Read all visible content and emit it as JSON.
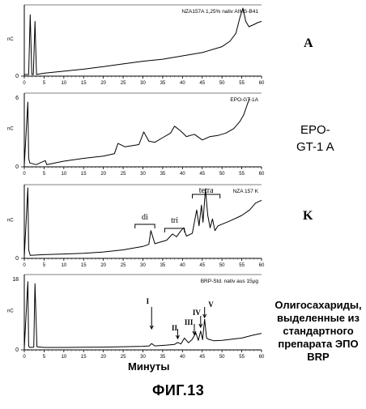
{
  "panels": [
    {
      "header": "NZA157A 1,25% nativ AIMS-B41",
      "ytop": "",
      "ybottom": "0",
      "yunit": "nC",
      "label": "A",
      "annotations": []
    },
    {
      "header": "EPO-GT-1A",
      "ytop": "6",
      "ybottom": "0",
      "yunit": "nC",
      "label": "EPO-\nGT-1 A",
      "annotations": []
    },
    {
      "header": "NZA 157 K",
      "ytop": "",
      "ybottom": "0",
      "yunit": "nC",
      "label": "K",
      "annotations": [
        "di",
        "tri",
        "tetra"
      ]
    },
    {
      "header": "BRP-Std. nativ aus 15µg",
      "ytop": "18",
      "ybottom": "0",
      "yunit": "nC",
      "label": "Олигосахариды, выделенные из стандартного препарата ЭПО BRP",
      "annotations": [
        "I",
        "II",
        "III",
        "IV",
        "V"
      ]
    }
  ],
  "x_ticks": [
    "0",
    "5",
    "10",
    "15",
    "20",
    "25",
    "30",
    "35",
    "40",
    "45",
    "50",
    "55",
    "60"
  ],
  "xlabel": "Минуты",
  "figure_title": "ФИГ.13",
  "chart_data": [
    {
      "type": "line",
      "title": "NZA157A 1,25% nativ AIMS-B41",
      "xlim": [
        0,
        60
      ],
      "x": [
        0,
        1.1,
        1.5,
        1.9,
        2.3,
        2.7,
        3.1,
        5,
        10,
        15,
        20,
        25,
        30,
        35,
        40,
        45,
        50,
        52,
        53.5,
        54.5,
        55.3,
        56,
        56.8,
        58,
        59,
        60
      ],
      "y": [
        0,
        0,
        0.9,
        0,
        0,
        0.8,
        0,
        0.02,
        0.05,
        0.08,
        0.12,
        0.16,
        0.2,
        0.23,
        0.28,
        0.33,
        0.42,
        0.5,
        0.62,
        0.85,
        1.0,
        0.8,
        0.72,
        0.75,
        0.78,
        0.8
      ]
    },
    {
      "type": "line",
      "title": "EPO-GT-1A",
      "xlim": [
        0,
        60
      ],
      "ylim": [
        0,
        6
      ],
      "x": [
        0,
        0.9,
        1.1,
        1.4,
        3,
        5.3,
        5.7,
        10,
        15,
        20,
        22.8,
        23.7,
        25.5,
        29,
        30.2,
        31.5,
        33,
        35,
        37,
        38,
        39.5,
        41,
        43,
        45,
        47,
        49,
        51,
        53,
        54.5,
        55.5,
        56.5,
        57
      ],
      "y": [
        0,
        5.5,
        0.6,
        0.2,
        0.05,
        0.4,
        0.05,
        0.35,
        0.6,
        0.8,
        1.0,
        1.9,
        1.6,
        1.8,
        2.9,
        2.1,
        2.0,
        2.4,
        2.8,
        3.4,
        3.0,
        2.5,
        2.7,
        2.2,
        2.5,
        2.6,
        2.8,
        3.2,
        3.8,
        4.4,
        5.4,
        5.8
      ]
    },
    {
      "type": "line",
      "title": "NZA 157 K",
      "xlim": [
        0,
        60
      ],
      "x": [
        0,
        0.9,
        1.1,
        1.5,
        5,
        10,
        15,
        20,
        25,
        30,
        31.5,
        32,
        33,
        36,
        37.5,
        38.5,
        39.5,
        40.3,
        41,
        42.5,
        43.6,
        44.2,
        44.8,
        45.2,
        45.8,
        46.4,
        47,
        47.6,
        48.2,
        49,
        52,
        55,
        57,
        58.5,
        60
      ],
      "y": [
        0,
        1.0,
        0.1,
        0.02,
        0.03,
        0.04,
        0.05,
        0.07,
        0.1,
        0.15,
        0.18,
        0.38,
        0.19,
        0.24,
        0.33,
        0.29,
        0.37,
        0.42,
        0.3,
        0.34,
        0.68,
        0.45,
        0.75,
        0.5,
        0.98,
        0.6,
        0.42,
        0.55,
        0.38,
        0.45,
        0.52,
        0.6,
        0.68,
        0.78,
        0.82
      ]
    },
    {
      "type": "line",
      "title": "BRP-Std. nativ aus 15µg",
      "xlim": [
        0,
        60
      ],
      "ylim": [
        0,
        18
      ],
      "x": [
        0,
        0.9,
        1.1,
        1.4,
        2.4,
        2.7,
        3.2,
        5,
        10,
        15,
        20,
        25,
        30,
        31.6,
        32.2,
        33,
        36,
        38,
        38.8,
        39.6,
        40.5,
        41.5,
        42.4,
        43.4,
        44,
        44.6,
        45.1,
        45.6,
        46.1,
        46.6,
        48,
        50,
        55,
        58,
        60
      ],
      "y": [
        0,
        17,
        0.5,
        0.2,
        0.3,
        16.5,
        0.4,
        0.2,
        0.2,
        0.25,
        0.3,
        0.4,
        0.5,
        0.6,
        1.2,
        0.6,
        0.8,
        1.0,
        1.5,
        1.1,
        2.6,
        1.4,
        2.2,
        3.9,
        2.0,
        4.4,
        2.2,
        7.4,
        2.6,
        2.3,
        1.9,
        2.0,
        2.6,
        3.4,
        3.8
      ]
    }
  ]
}
